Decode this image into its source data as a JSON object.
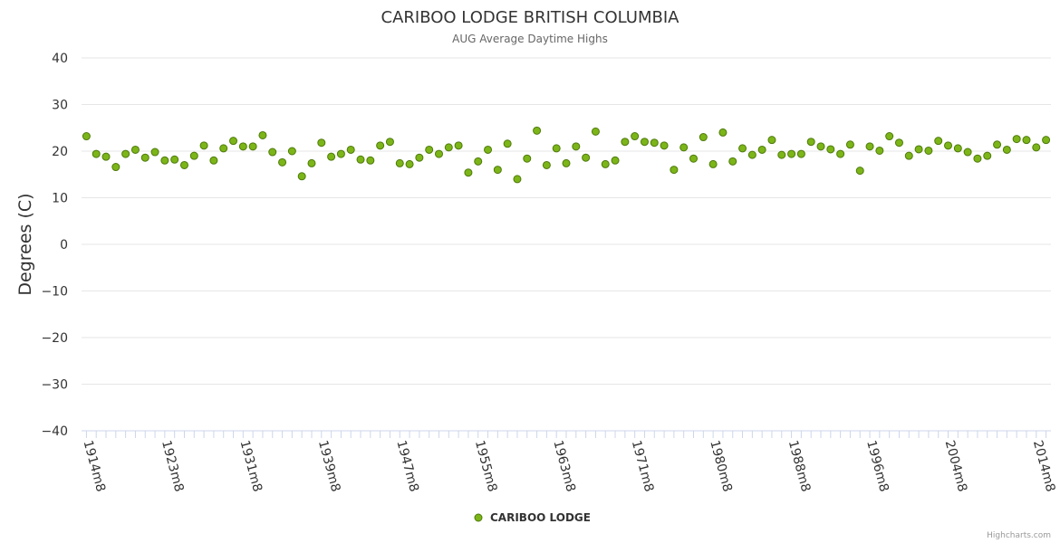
{
  "chart_data": {
    "type": "scatter",
    "title": "CARIBOO LODGE BRITISH COLUMBIA",
    "subtitle": "AUG Average Daytime Highs",
    "ylabel": "Degrees (C)",
    "xlabel": "",
    "ylim": [
      -40,
      40
    ],
    "yticks": [
      40,
      30,
      20,
      10,
      0,
      -10,
      -20,
      -30,
      -40
    ],
    "x_tick_labels": [
      "1914m8",
      "1923m8",
      "1931m8",
      "1939m8",
      "1947m8",
      "1955m8",
      "1963m8",
      "1971m8",
      "1980m8",
      "1988m8",
      "1996m8",
      "2004m8",
      "2014m8"
    ],
    "x_tick_label_indices": [
      0,
      8,
      16,
      24,
      32,
      40,
      48,
      56,
      64,
      72,
      80,
      88,
      97
    ],
    "series": [
      {
        "name": "CARIBOO LODGE",
        "color": "#7cb518",
        "stroke": "#4d7a0a",
        "values": [
          23.2,
          19.4,
          18.8,
          16.6,
          19.4,
          20.3,
          18.6,
          19.8,
          18.0,
          18.2,
          17.0,
          19.0,
          21.2,
          18.0,
          20.6,
          22.2,
          21.0,
          21.0,
          23.4,
          19.8,
          17.6,
          20.0,
          14.6,
          17.4,
          21.8,
          18.8,
          19.4,
          20.3,
          18.2,
          18.0,
          21.2,
          22.0,
          17.4,
          17.2,
          18.6,
          20.3,
          19.4,
          20.8,
          21.2,
          15.4,
          17.8,
          20.3,
          16.0,
          21.6,
          14.0,
          18.4,
          24.4,
          17.0,
          20.6,
          17.4,
          21.0,
          18.6,
          24.2,
          17.2,
          18.0,
          22.0,
          23.2,
          22.0,
          21.8,
          21.2,
          16.0,
          20.8,
          18.4,
          23.0,
          17.2,
          24.0,
          17.8,
          20.6,
          19.2,
          20.3,
          22.4,
          19.2,
          19.4,
          19.4,
          22.0,
          21.0,
          20.4,
          19.4,
          21.4,
          15.8,
          21.0,
          20.1,
          23.2,
          21.8,
          19.0,
          20.4,
          20.1,
          22.2,
          21.2,
          20.6,
          19.8,
          18.4,
          19.0,
          21.4,
          20.3,
          22.6,
          22.4,
          20.8,
          22.4
        ]
      }
    ],
    "legend": {
      "position": "bottom-center"
    }
  },
  "credits": "Highcharts.com"
}
